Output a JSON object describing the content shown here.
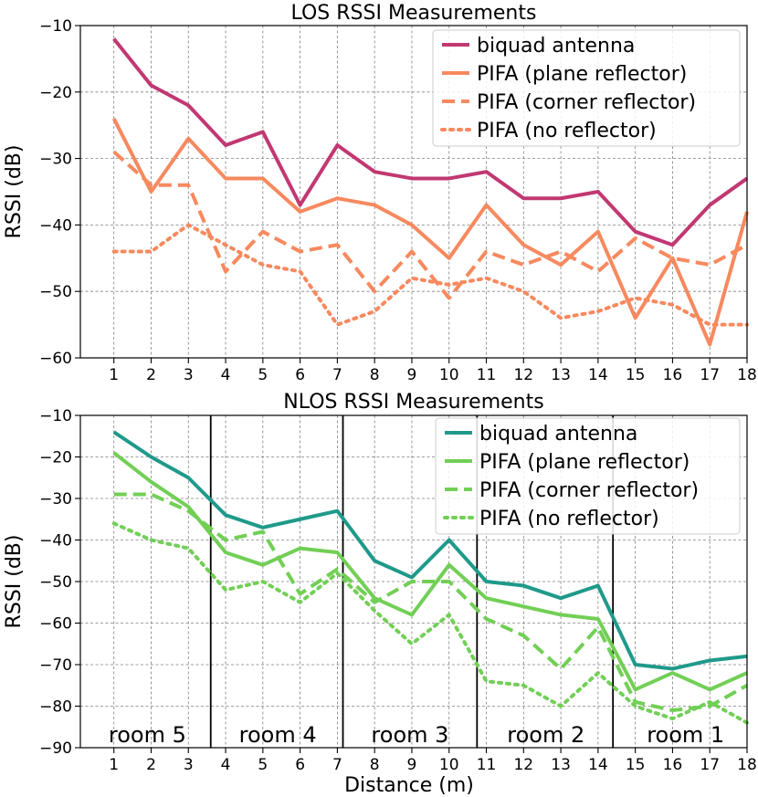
{
  "chart_data": [
    {
      "type": "line",
      "title": "LOS RSSI Measurements",
      "xlabel": "",
      "ylabel": "RSSI (dB)",
      "x": [
        1,
        2,
        3,
        4,
        5,
        6,
        7,
        8,
        9,
        10,
        11,
        12,
        13,
        14,
        15,
        16,
        17,
        18
      ],
      "xlim": [
        0.1,
        18
      ],
      "ylim": [
        -60,
        -10
      ],
      "yticks": [
        -60,
        -50,
        -40,
        -30,
        -20,
        -10
      ],
      "ytick_labels": [
        "−60",
        "−50",
        "−40",
        "−30",
        "−20",
        "−10"
      ],
      "xtick_labels": [
        "1",
        "2",
        "3",
        "4",
        "5",
        "6",
        "7",
        "8",
        "9",
        "10",
        "11",
        "12",
        "13",
        "14",
        "15",
        "16",
        "17",
        "18"
      ],
      "grid": true,
      "legend_position": "upper-right",
      "series": [
        {
          "name": "biquad antenna",
          "color": "#c13872",
          "style": "solid",
          "values": [
            -12,
            -19,
            -22,
            -28,
            -26,
            -37,
            -28,
            -32,
            -33,
            -33,
            -32,
            -36,
            -36,
            -35,
            -41,
            -43,
            -37,
            -33
          ]
        },
        {
          "name": "PIFA (plane reflector)",
          "color": "#f7895f",
          "style": "solid",
          "values": [
            -24,
            -35,
            -27,
            -33,
            -33,
            -38,
            -36,
            -37,
            -40,
            -45,
            -37,
            -43,
            -46,
            -41,
            -54,
            -45,
            -58,
            -38
          ]
        },
        {
          "name": "PIFA (corner reflector)",
          "color": "#f7895f",
          "style": "dashed",
          "values": [
            -29,
            -34,
            -34,
            -47,
            -41,
            -44,
            -43,
            -50,
            -44,
            -51,
            -44,
            -46,
            -44,
            -47,
            -42,
            -45,
            -46,
            -43
          ]
        },
        {
          "name": "PIFA (no reflector)",
          "color": "#f7895f",
          "style": "dotted",
          "values": [
            -44,
            -44,
            -40,
            -43,
            -46,
            -47,
            -55,
            -53,
            -48,
            -49,
            -48,
            -50,
            -54,
            -53,
            -51,
            -52,
            -55,
            -55
          ]
        }
      ]
    },
    {
      "type": "line",
      "title": "NLOS RSSI Measurements",
      "xlabel": "Distance (m)",
      "ylabel": "RSSI (dB)",
      "x": [
        1,
        2,
        3,
        4,
        5,
        6,
        7,
        8,
        9,
        10,
        11,
        12,
        13,
        14,
        15,
        16,
        17,
        18
      ],
      "xlim": [
        0.1,
        18
      ],
      "ylim": [
        -90,
        -10
      ],
      "yticks": [
        -90,
        -80,
        -70,
        -60,
        -50,
        -40,
        -30,
        -20,
        -10
      ],
      "ytick_labels": [
        "−90",
        "−80",
        "−70",
        "−60",
        "−50",
        "−40",
        "−30",
        "−20",
        "−10"
      ],
      "xtick_labels": [
        "1",
        "2",
        "3",
        "4",
        "5",
        "6",
        "7",
        "8",
        "9",
        "10",
        "11",
        "12",
        "13",
        "14",
        "15",
        "16",
        "17",
        "18"
      ],
      "grid": true,
      "legend_position": "upper-right",
      "room_boundaries": [
        3.6,
        7.15,
        10.75,
        14.4
      ],
      "rooms": [
        {
          "label": "room 5",
          "center": 1.9
        },
        {
          "label": "room 4",
          "center": 5.4
        },
        {
          "label": "room 3",
          "center": 8.95
        },
        {
          "label": "room 2",
          "center": 12.6
        },
        {
          "label": "room 1",
          "center": 16.35
        }
      ],
      "series": [
        {
          "name": "biquad antenna",
          "color": "#1f9a8a",
          "style": "solid",
          "values": [
            -14,
            -20,
            -25,
            -34,
            -37,
            -35,
            -33,
            -45,
            -49,
            -40,
            -50,
            -51,
            -54,
            -51,
            -70,
            -71,
            -69,
            -68
          ]
        },
        {
          "name": "PIFA (plane reflector)",
          "color": "#72cf56",
          "style": "solid",
          "values": [
            -19,
            -26,
            -32,
            -43,
            -46,
            -42,
            -43,
            -54,
            -58,
            -46,
            -54,
            -56,
            -58,
            -59,
            -76,
            -72,
            -76,
            -72
          ]
        },
        {
          "name": "PIFA (corner reflector)",
          "color": "#72cf56",
          "style": "dashed",
          "values": [
            -29,
            -29,
            -33,
            -40,
            -38,
            -53,
            -47,
            -55,
            -50,
            -50,
            -59,
            -63,
            -71,
            -61,
            -79,
            -81,
            -80,
            -75
          ]
        },
        {
          "name": "PIFA (no reflector)",
          "color": "#72cf56",
          "style": "dotted",
          "values": [
            -36,
            -40,
            -42,
            -52,
            -50,
            -55,
            -48,
            -57,
            -65,
            -58,
            -74,
            -75,
            -80,
            -72,
            -80,
            -83,
            -79,
            -84
          ]
        }
      ]
    }
  ]
}
